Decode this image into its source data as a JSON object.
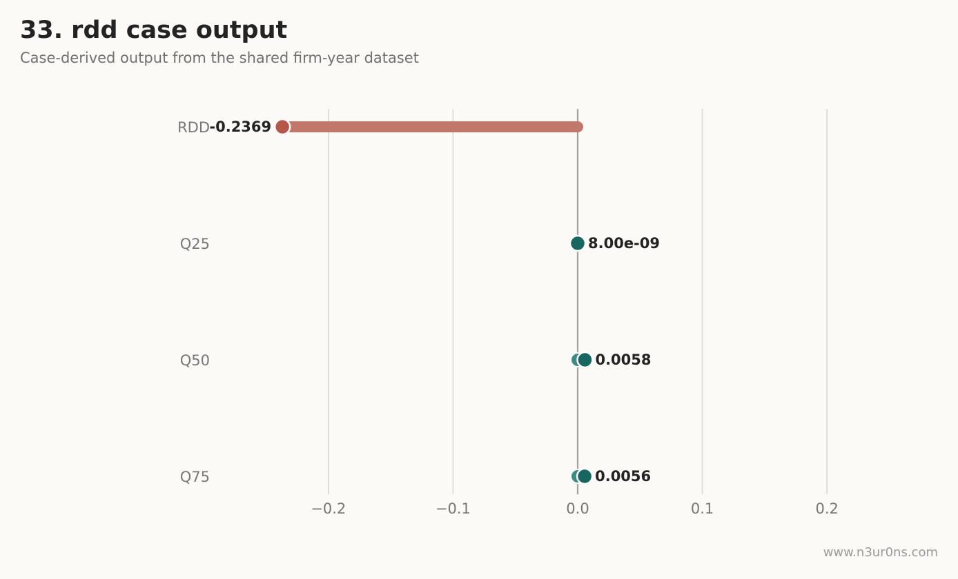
{
  "header": {
    "title": "33. rdd case output",
    "subtitle": "Case-derived output from the shared firm-year dataset"
  },
  "footer": {
    "watermark": "www.n3ur0ns.com"
  },
  "colors": {
    "negative": "#b5574a",
    "negative_bar": "#c2776b",
    "positive": "#17665f",
    "positive_start": "#3f8a82",
    "grid": "#d9d6d0",
    "zero_line": "#a3a19d"
  },
  "chart_data": {
    "type": "dot-lollipop",
    "title": "33. rdd case output",
    "subtitle": "Case-derived output from the shared firm-year dataset",
    "xlabel": "",
    "ylabel": "",
    "xlim": [
      -0.3,
      0.3
    ],
    "xticks": [
      -0.2,
      -0.1,
      0.0,
      0.1,
      0.2
    ],
    "xtick_labels": [
      "−0.2",
      "−0.1",
      "0.0",
      "0.1",
      "0.2"
    ],
    "grid": "vertical",
    "categories": [
      "RDD",
      "Q25",
      "Q50",
      "Q75"
    ],
    "values": [
      -0.2369,
      8e-09,
      0.0058,
      0.0056
    ],
    "value_labels": [
      "-0.2369",
      "8.00e-09",
      "0.0058",
      "0.0056"
    ],
    "baseline": 0.0
  }
}
